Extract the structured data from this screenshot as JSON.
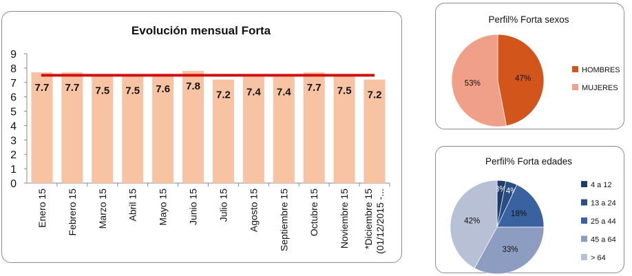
{
  "chart_data": [
    {
      "type": "bar",
      "title": "Evolución mensual Forta",
      "categories": [
        "Enero 15",
        "Febrero 15",
        "Marzo 15",
        "Abril 15",
        "Mayo 15",
        "Junio 15",
        "Julio 15",
        "Agosto 15",
        "Septiembre 15",
        "Octubre 15",
        "Noviembre 15",
        "*Diciembre 15 (01/12/2015 -..."
      ],
      "values": [
        7.7,
        7.7,
        7.5,
        7.5,
        7.6,
        7.8,
        7.2,
        7.4,
        7.4,
        7.7,
        7.5,
        7.2
      ],
      "value_labels": [
        "7.7",
        "7.7",
        "7.5",
        "7.5",
        "7.6",
        "7.8",
        "7.2",
        "7.4",
        "7.4",
        "7.7",
        "7.5",
        "7.2"
      ],
      "reference_line": 7.5,
      "ylim": [
        0,
        9
      ],
      "yticks": [
        "0",
        "1",
        "2",
        "3",
        "4",
        "5",
        "6",
        "7",
        "8",
        "9"
      ],
      "colors": {
        "bar": "#f7c3a3",
        "line": "#d01010"
      }
    },
    {
      "type": "pie",
      "title": "Perfil% Forta sexos",
      "legend": "right",
      "slices": [
        {
          "label": "HOMBRES",
          "value": 47,
          "text": "47%",
          "color": "#d2561c"
        },
        {
          "label": "MUJERES",
          "value": 53,
          "text": "53%",
          "color": "#f0a088"
        }
      ]
    },
    {
      "type": "pie",
      "title": "Perfil% Forta edades",
      "legend": "right",
      "slices": [
        {
          "label": "4 a 12",
          "value": 3,
          "text": "3%",
          "color": "#1f3d6b"
        },
        {
          "label": "13 a 24",
          "value": 4,
          "text": "4%",
          "color": "#294d85"
        },
        {
          "label": "25 a 44",
          "value": 18,
          "text": "18%",
          "color": "#3a62a0"
        },
        {
          "label": "45 a 64",
          "value": 33,
          "text": "33%",
          "color": "#8c9dc1"
        },
        {
          "label": "> 64",
          "value": 42,
          "text": "42%",
          "color": "#b8c0d5"
        }
      ]
    }
  ]
}
